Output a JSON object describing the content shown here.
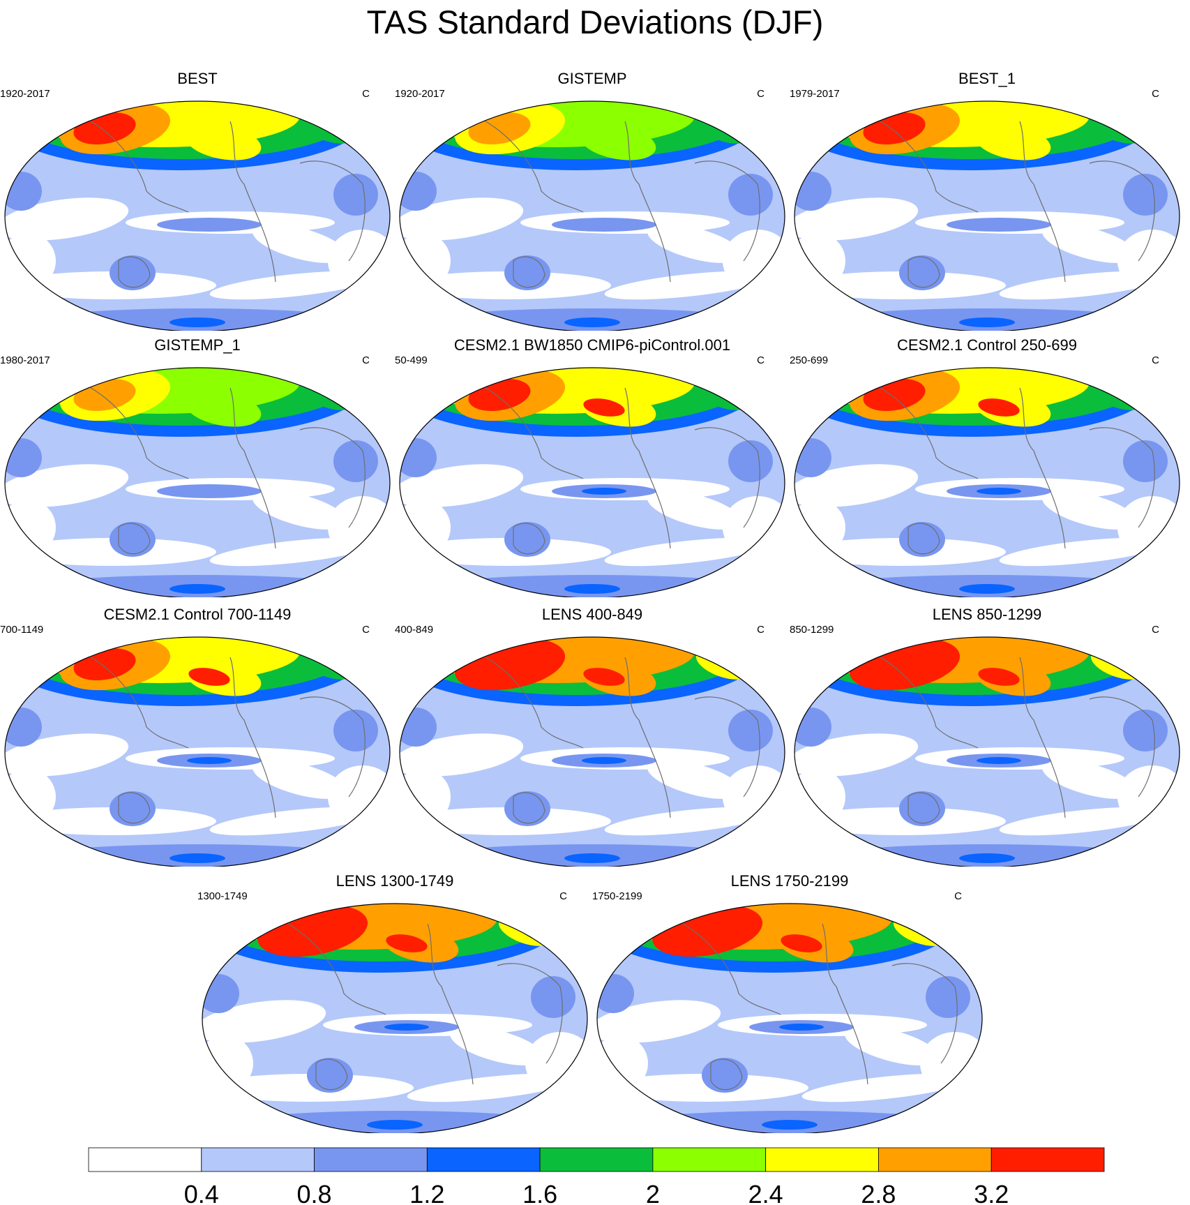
{
  "title": "TAS Standard Deviations (DJF)",
  "panels": [
    {
      "title": "BEST",
      "left": "1920-2017",
      "right": "C",
      "polar": 2.8,
      "hot": 3.2,
      "model": 0
    },
    {
      "title": "GISTEMP",
      "left": "1920-2017",
      "right": "C",
      "polar": 2.6,
      "hot": 2.8,
      "model": 0
    },
    {
      "title": "BEST_1",
      "left": "1979-2017",
      "right": "C",
      "polar": 2.8,
      "hot": 3.2,
      "model": 0
    },
    {
      "title": "GISTEMP_1",
      "left": "1980-2017",
      "right": "C",
      "polar": 2.6,
      "hot": 2.8,
      "model": 0
    },
    {
      "title": "CESM2.1 BW1850 CMIP6-piControl.001",
      "left": "50-499",
      "right": "C",
      "polar": 2.8,
      "hot": 3.2,
      "model": 1
    },
    {
      "title": "CESM2.1 Control 250-699",
      "left": "250-699",
      "right": "C",
      "polar": 2.8,
      "hot": 3.2,
      "model": 1
    },
    {
      "title": "CESM2.1 Control 700-1149",
      "left": "700-1149",
      "right": "C",
      "polar": 2.8,
      "hot": 3.2,
      "model": 1
    },
    {
      "title": "LENS 400-849",
      "left": "400-849",
      "right": "C",
      "polar": 3.2,
      "hot": 3.6,
      "model": 1
    },
    {
      "title": "LENS 850-1299",
      "left": "850-1299",
      "right": "C",
      "polar": 3.2,
      "hot": 3.6,
      "model": 1
    },
    {
      "title": "LENS 1300-1749",
      "left": "1300-1749",
      "right": "C",
      "polar": 3.2,
      "hot": 3.6,
      "model": 1
    },
    {
      "title": "LENS 1750-2199",
      "left": "1750-2199",
      "right": "C",
      "polar": 3.2,
      "hot": 3.6,
      "model": 1
    }
  ],
  "colorbar": {
    "levels": [
      "0.4",
      "0.8",
      "1.2",
      "1.6",
      "2",
      "2.4",
      "2.8",
      "3.2"
    ],
    "colors": [
      "#ffffff",
      "#b4c8fa",
      "#7896f0",
      "#0a64ff",
      "#0abe3c",
      "#8cff00",
      "#ffff00",
      "#ffa000",
      "#ff1e00"
    ]
  },
  "map": {
    "ocean": "#b4c8fa",
    "coast": "#6e6e6e"
  }
}
